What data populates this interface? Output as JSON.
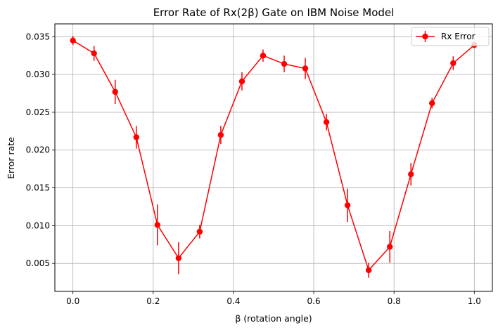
{
  "chart_data": {
    "type": "line",
    "title": "Error Rate of Rx(2β) Gate on IBM Noise Model",
    "xlabel": "β (rotation angle)",
    "ylabel": "Error rate",
    "xlim": [
      -0.045,
      1.045
    ],
    "ylim": [
      0.0013,
      0.0367
    ],
    "grid": true,
    "legend_position": "top-right",
    "x_ticks": [
      "0.0",
      "0.2",
      "0.4",
      "0.6",
      "0.8",
      "1.0"
    ],
    "x_tick_values": [
      0.0,
      0.2,
      0.4,
      0.6,
      0.8,
      1.0
    ],
    "y_ticks": [
      "0.005",
      "0.010",
      "0.015",
      "0.020",
      "0.025",
      "0.030",
      "0.035"
    ],
    "y_tick_values": [
      0.005,
      0.01,
      0.015,
      0.02,
      0.025,
      0.03,
      0.035
    ],
    "series": [
      {
        "name": "Rx Error",
        "color": "#ff0000",
        "marker": "circle",
        "x": [
          0.0,
          0.0526,
          0.1053,
          0.1579,
          0.2105,
          0.2632,
          0.3158,
          0.3684,
          0.4211,
          0.4737,
          0.5263,
          0.5789,
          0.6316,
          0.6842,
          0.7368,
          0.7895,
          0.8421,
          0.8947,
          0.9474,
          1.0
        ],
        "y": [
          0.0345,
          0.0328,
          0.0277,
          0.0217,
          0.0101,
          0.0057,
          0.0092,
          0.022,
          0.0291,
          0.0325,
          0.0314,
          0.0308,
          0.0237,
          0.0127,
          0.0041,
          0.0072,
          0.0168,
          0.0262,
          0.0315,
          0.0339
        ],
        "yerr": [
          0.0006,
          0.001,
          0.0016,
          0.0015,
          0.0027,
          0.0021,
          0.0009,
          0.0012,
          0.0012,
          0.0008,
          0.0011,
          0.0014,
          0.0011,
          0.0022,
          0.001,
          0.0021,
          0.0015,
          0.0007,
          0.0009,
          0.0004
        ]
      }
    ]
  }
}
